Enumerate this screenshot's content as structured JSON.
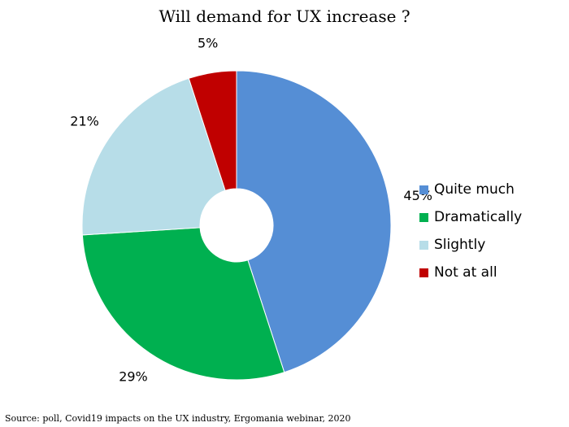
{
  "chart_data": {
    "type": "pie",
    "title": "Will demand for UX increase ?",
    "categories": [
      "Quite much",
      "Dramatically",
      "Slightly",
      "Not at all"
    ],
    "values": [
      45,
      29,
      21,
      5
    ],
    "labels": [
      "45%",
      "29%",
      "21%",
      "5%"
    ],
    "colors": [
      "#558ed5",
      "#00b050",
      "#b7dde8",
      "#c00000"
    ],
    "legend_position": "right",
    "source": "Source: poll, Covid19 impacts on the UX industry, Ergomania webinar, 2020"
  }
}
